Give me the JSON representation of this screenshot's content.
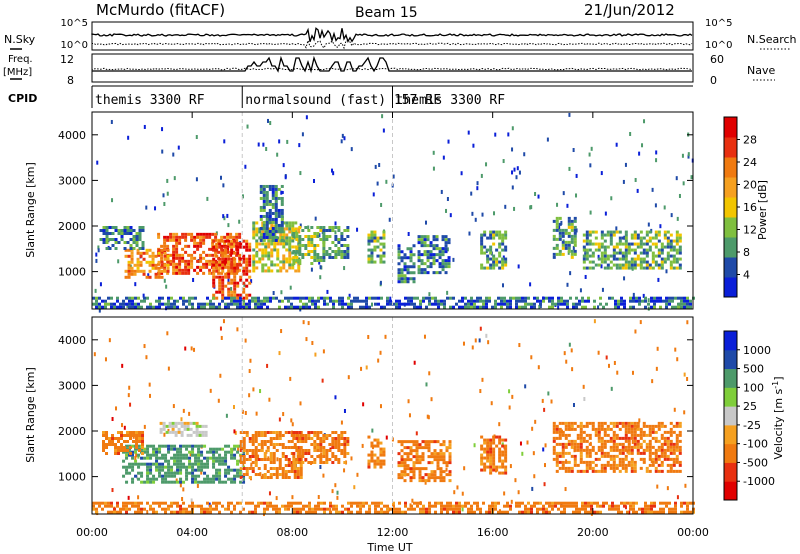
{
  "header": {
    "station": "McMurdo (fitACF)",
    "beam": "Beam 15",
    "date": "21/Jun/2012"
  },
  "params": {
    "nsky_label": "N.Sky",
    "nsearch_label": "N.Search",
    "freq_label": "Freq.",
    "freq_unit": "[MHz]",
    "nave_label": "Nave",
    "cpid_label": "CPID",
    "log_ticks": [
      "10^5",
      "10^0"
    ],
    "freq_ticks": [
      "12",
      "8"
    ],
    "nave_ticks": [
      "60",
      "0"
    ]
  },
  "cpid_segments": [
    {
      "name": "themis 3300 RF",
      "start_hour": 0,
      "end_hour": 6.0
    },
    {
      "name": "normalsound (fast) 157 RF",
      "start_hour": 6.0,
      "end_hour": 12.0
    },
    {
      "name": "themis 3300 RF",
      "start_hour": 12.0,
      "end_hour": 24
    }
  ],
  "colors": {
    "power_scale": [
      "#0a1fd8",
      "#1f4aa8",
      "#4d9a6a",
      "#7fbf3f",
      "#f2c500",
      "#f5a020",
      "#f07a10",
      "#e83010",
      "#e00000"
    ],
    "velocity_scale": [
      "#e00000",
      "#e83010",
      "#f07a10",
      "#f5a020",
      "#c8c8c8",
      "#7fce3a",
      "#4d9a6a",
      "#1f4aa8",
      "#0a1fd8"
    ],
    "neutral": "#c8c8c8"
  },
  "chart_data": [
    {
      "type": "heatmap",
      "panel": "power",
      "ylabel": "Slant Range [km]",
      "xlabel": "",
      "xlim": [
        0,
        24
      ],
      "ylim": [
        180,
        4500
      ],
      "yticks": [
        1000,
        2000,
        3000,
        4000
      ],
      "colorbar_label": "Power [dB]",
      "colorbar_ticks": [
        "4",
        "8",
        "12",
        "16",
        "20",
        "24",
        "28"
      ],
      "colorbar_range": [
        0,
        32
      ],
      "regions": [
        {
          "t": [
            2.6,
            5.9
          ],
          "r": [
            950,
            1850
          ],
          "level": 26
        },
        {
          "t": [
            1.3,
            3.0
          ],
          "r": [
            900,
            1500
          ],
          "level": 22
        },
        {
          "t": [
            0.3,
            2.0
          ],
          "r": [
            1500,
            2000
          ],
          "level": 6
        },
        {
          "t": [
            4.8,
            6.3
          ],
          "r": [
            400,
            1700
          ],
          "level": 27
        },
        {
          "t": [
            6.4,
            8.3
          ],
          "r": [
            1000,
            2100
          ],
          "level": 14
        },
        {
          "t": [
            6.7,
            7.6
          ],
          "r": [
            1700,
            2900
          ],
          "level": 6
        },
        {
          "t": [
            8.0,
            9.3
          ],
          "r": [
            1200,
            2000
          ],
          "level": 12
        },
        {
          "t": [
            9.2,
            10.2
          ],
          "r": [
            1300,
            2000
          ],
          "level": 8
        },
        {
          "t": [
            11.0,
            11.6
          ],
          "r": [
            1200,
            1900
          ],
          "level": 10
        },
        {
          "t": [
            12.2,
            12.8
          ],
          "r": [
            800,
            1600
          ],
          "level": 6
        },
        {
          "t": [
            13.0,
            14.3
          ],
          "r": [
            1000,
            1800
          ],
          "level": 7
        },
        {
          "t": [
            15.5,
            16.5
          ],
          "r": [
            1100,
            1900
          ],
          "level": 9
        },
        {
          "t": [
            18.4,
            19.3
          ],
          "r": [
            1300,
            2200
          ],
          "level": 9
        },
        {
          "t": [
            19.6,
            23.5
          ],
          "r": [
            1100,
            1900
          ],
          "level": 10
        },
        {
          "t": [
            0.0,
            24.0
          ],
          "r": [
            200,
            450
          ],
          "level": 5
        }
      ]
    },
    {
      "type": "heatmap",
      "panel": "velocity",
      "ylabel": "Slant Range [km]",
      "xlabel": "Time UT",
      "xlim": [
        0,
        24
      ],
      "ylim": [
        180,
        4500
      ],
      "yticks": [
        1000,
        2000,
        3000,
        4000
      ],
      "xticks": [
        "00:00",
        "04:00",
        "08:00",
        "12:00",
        "16:00",
        "20:00",
        "00:00"
      ],
      "colorbar_label": "Velocity [m s^-1]",
      "colorbar_ticks": [
        "-1000",
        "-500",
        "-100",
        "-25",
        "25",
        "100",
        "500",
        "1000"
      ],
      "regions": [
        {
          "t": [
            1.2,
            6.0
          ],
          "r": [
            900,
            1700
          ],
          "level": 6
        },
        {
          "t": [
            0.4,
            2.0
          ],
          "r": [
            1500,
            2000
          ],
          "level": 2
        },
        {
          "t": [
            2.7,
            4.5
          ],
          "r": [
            1900,
            2200
          ],
          "level": 4
        },
        {
          "t": [
            5.9,
            8.3
          ],
          "r": [
            1000,
            2000
          ],
          "level": 2
        },
        {
          "t": [
            8.0,
            10.2
          ],
          "r": [
            1300,
            2000
          ],
          "level": 2
        },
        {
          "t": [
            11.0,
            11.6
          ],
          "r": [
            1200,
            1900
          ],
          "level": 2
        },
        {
          "t": [
            12.2,
            14.3
          ],
          "r": [
            900,
            1800
          ],
          "level": 2
        },
        {
          "t": [
            15.5,
            16.5
          ],
          "r": [
            1100,
            1900
          ],
          "level": 2
        },
        {
          "t": [
            18.4,
            23.5
          ],
          "r": [
            1100,
            2200
          ],
          "level": 2
        },
        {
          "t": [
            0.0,
            24.0
          ],
          "r": [
            200,
            450
          ],
          "level": 2
        }
      ]
    }
  ]
}
